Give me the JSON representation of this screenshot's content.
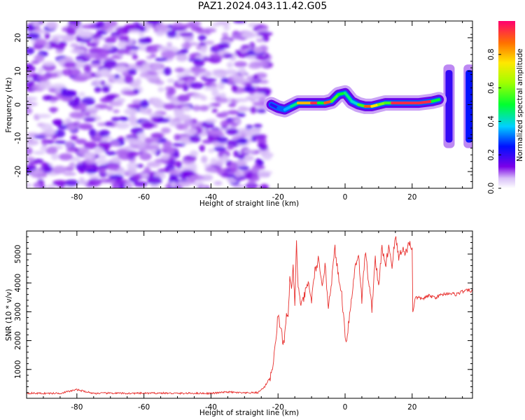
{
  "title": "PAZ1.2024.043.11.42.G05",
  "colorbar": {
    "label": "Normalized spectral amplitude",
    "ticks": [
      "0.0",
      "0.2",
      "0.4",
      "0.6",
      "0.8"
    ],
    "tick_values": [
      0.0,
      0.2,
      0.4,
      0.6,
      0.8
    ]
  },
  "chart_data": [
    {
      "type": "heatmap",
      "title": "",
      "xlabel": "Height of straight line (km)",
      "ylabel": "Frequency (Hz)",
      "xlim": [
        -95,
        38
      ],
      "ylim": [
        -25,
        25
      ],
      "xticks": [
        -80,
        -60,
        -40,
        -20,
        0,
        20
      ],
      "xtick_labels": [
        "-80",
        "-60",
        "-40",
        "-20",
        "0",
        "20"
      ],
      "yticks": [
        -20,
        -10,
        0,
        10,
        20
      ],
      "ytick_labels": [
        "-20",
        "-10",
        "0",
        "10",
        "20"
      ],
      "colormap": "rainbow",
      "clim": [
        0,
        1
      ],
      "noise_region_x": [
        -95,
        -23
      ],
      "ridge": {
        "x": [
          -22,
          -20,
          -18,
          -16,
          -14,
          -10,
          -8,
          -6,
          -4,
          -2,
          0,
          2,
          4,
          6,
          8,
          10,
          12,
          14,
          18,
          22,
          26,
          28
        ],
        "y": [
          0,
          -1,
          -1.5,
          -0.5,
          0.5,
          0.5,
          0.5,
          0.5,
          1,
          3,
          3.5,
          1,
          0,
          -0.5,
          -0.5,
          0,
          0.5,
          0.5,
          0.5,
          0.5,
          1,
          1.5
        ],
        "amplitude": [
          0.2,
          0.3,
          0.35,
          0.45,
          0.8,
          0.95,
          0.5,
          0.9,
          0.55,
          0.5,
          0.45,
          0.4,
          0.55,
          0.9,
          0.75,
          0.6,
          0.55,
          0.95,
          0.95,
          0.95,
          0.5,
          0.3
        ]
      },
      "edge_features": [
        {
          "x": 31,
          "y_range": [
            -13,
            12
          ],
          "amplitude": 0.2
        },
        {
          "x": 37,
          "y_range": [
            -13,
            12
          ],
          "amplitude": 0.25
        }
      ]
    },
    {
      "type": "line",
      "title": "",
      "xlabel": "Height of straight line (km)",
      "ylabel": "SNR (10 * v/v)",
      "xlim": [
        -95,
        38
      ],
      "ylim": [
        0,
        5800
      ],
      "xticks": [
        -80,
        -60,
        -40,
        -20,
        0,
        20
      ],
      "xtick_labels": [
        "-80",
        "-60",
        "-40",
        "-20",
        "0",
        "20"
      ],
      "yticks": [
        1000,
        2000,
        3000,
        4000,
        5000
      ],
      "ytick_labels": [
        "1000",
        "2000",
        "3000",
        "4000",
        "5000"
      ],
      "line_color": "#e8302e",
      "x": [
        -95,
        -90,
        -85,
        -80,
        -75,
        -70,
        -65,
        -60,
        -55,
        -50,
        -45,
        -40,
        -35,
        -30,
        -26,
        -24,
        -22,
        -21,
        -20,
        -19.5,
        -19,
        -18.5,
        -18,
        -17.5,
        -17,
        -16.5,
        -16,
        -15.5,
        -15,
        -14.5,
        -14,
        -13.5,
        -13,
        -12,
        -11,
        -10,
        -9,
        -8,
        -7,
        -6,
        -5,
        -4,
        -3,
        -2,
        -1,
        0,
        0.5,
        1,
        2,
        3,
        4,
        5,
        6,
        7,
        8,
        9,
        10,
        11,
        12,
        13,
        14,
        15,
        16,
        17,
        18,
        19,
        20,
        20.2,
        21,
        23,
        25,
        27,
        29,
        31,
        33,
        35,
        37,
        38
      ],
      "y": [
        180,
        170,
        175,
        300,
        170,
        180,
        170,
        175,
        180,
        170,
        175,
        170,
        220,
        180,
        200,
        400,
        800,
        1600,
        2900,
        2600,
        2400,
        1700,
        2200,
        2900,
        2700,
        4200,
        3700,
        4500,
        3300,
        5400,
        3800,
        3500,
        3200,
        3600,
        4000,
        3400,
        4400,
        4800,
        3900,
        4600,
        3200,
        4100,
        5200,
        4200,
        3600,
        2200,
        2000,
        2600,
        3500,
        4600,
        5000,
        3400,
        5100,
        4100,
        3100,
        4900,
        3800,
        5300,
        4500,
        5300,
        4600,
        5600,
        4900,
        5200,
        5000,
        5400,
        5200,
        3000,
        3500,
        3450,
        3550,
        3500,
        3600,
        3650,
        3600,
        3700,
        3750,
        3700
      ]
    }
  ]
}
